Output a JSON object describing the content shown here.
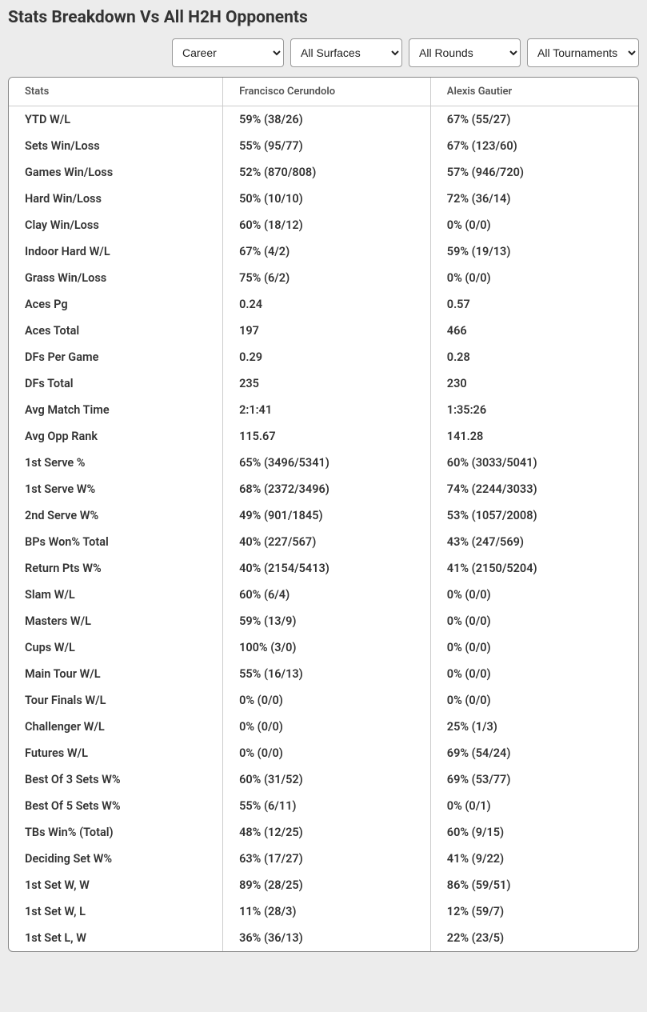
{
  "title": "Stats Breakdown Vs All H2H Opponents",
  "filters": {
    "career": {
      "selected": "Career"
    },
    "surfaces": {
      "selected": "All Surfaces"
    },
    "rounds": {
      "selected": "All Rounds"
    },
    "tournaments": {
      "selected": "All Tournaments"
    }
  },
  "headers": {
    "stats": "Stats",
    "player1": "Francisco Cerundolo",
    "player2": "Alexis Gautier"
  },
  "rows": [
    {
      "stat": "YTD W/L",
      "p1": "59% (38/26)",
      "p2": "67% (55/27)"
    },
    {
      "stat": "Sets Win/Loss",
      "p1": "55% (95/77)",
      "p2": "67% (123/60)"
    },
    {
      "stat": "Games Win/Loss",
      "p1": "52% (870/808)",
      "p2": "57% (946/720)"
    },
    {
      "stat": "Hard Win/Loss",
      "p1": "50% (10/10)",
      "p2": "72% (36/14)"
    },
    {
      "stat": "Clay Win/Loss",
      "p1": "60% (18/12)",
      "p2": "0% (0/0)"
    },
    {
      "stat": "Indoor Hard W/L",
      "p1": "67% (4/2)",
      "p2": "59% (19/13)"
    },
    {
      "stat": "Grass Win/Loss",
      "p1": "75% (6/2)",
      "p2": "0% (0/0)"
    },
    {
      "stat": "Aces Pg",
      "p1": "0.24",
      "p2": "0.57"
    },
    {
      "stat": "Aces Total",
      "p1": "197",
      "p2": "466"
    },
    {
      "stat": "DFs Per Game",
      "p1": "0.29",
      "p2": "0.28"
    },
    {
      "stat": "DFs Total",
      "p1": "235",
      "p2": "230"
    },
    {
      "stat": "Avg Match Time",
      "p1": "2:1:41",
      "p2": "1:35:26"
    },
    {
      "stat": "Avg Opp Rank",
      "p1": "115.67",
      "p2": "141.28"
    },
    {
      "stat": "1st Serve %",
      "p1": "65% (3496/5341)",
      "p2": "60% (3033/5041)"
    },
    {
      "stat": "1st Serve W%",
      "p1": "68% (2372/3496)",
      "p2": "74% (2244/3033)"
    },
    {
      "stat": "2nd Serve W%",
      "p1": "49% (901/1845)",
      "p2": "53% (1057/2008)"
    },
    {
      "stat": "BPs Won% Total",
      "p1": "40% (227/567)",
      "p2": "43% (247/569)"
    },
    {
      "stat": "Return Pts W%",
      "p1": "40% (2154/5413)",
      "p2": "41% (2150/5204)"
    },
    {
      "stat": "Slam W/L",
      "p1": "60% (6/4)",
      "p2": "0% (0/0)"
    },
    {
      "stat": "Masters W/L",
      "p1": "59% (13/9)",
      "p2": "0% (0/0)"
    },
    {
      "stat": "Cups W/L",
      "p1": "100% (3/0)",
      "p2": "0% (0/0)"
    },
    {
      "stat": "Main Tour W/L",
      "p1": "55% (16/13)",
      "p2": "0% (0/0)"
    },
    {
      "stat": "Tour Finals W/L",
      "p1": "0% (0/0)",
      "p2": "0% (0/0)"
    },
    {
      "stat": "Challenger W/L",
      "p1": "0% (0/0)",
      "p2": "25% (1/3)"
    },
    {
      "stat": "Futures W/L",
      "p1": "0% (0/0)",
      "p2": "69% (54/24)"
    },
    {
      "stat": "Best Of 3 Sets W%",
      "p1": "60% (31/52)",
      "p2": "69% (53/77)"
    },
    {
      "stat": "Best Of 5 Sets W%",
      "p1": "55% (6/11)",
      "p2": "0% (0/1)"
    },
    {
      "stat": "TBs Win% (Total)",
      "p1": "48% (12/25)",
      "p2": "60% (9/15)"
    },
    {
      "stat": "Deciding Set W%",
      "p1": "63% (17/27)",
      "p2": "41% (9/22)"
    },
    {
      "stat": "1st Set W, W",
      "p1": "89% (28/25)",
      "p2": "86% (59/51)"
    },
    {
      "stat": "1st Set W, L",
      "p1": "11% (28/3)",
      "p2": "12% (59/7)"
    },
    {
      "stat": "1st Set L, W",
      "p1": "36% (36/13)",
      "p2": "22% (23/5)"
    }
  ]
}
